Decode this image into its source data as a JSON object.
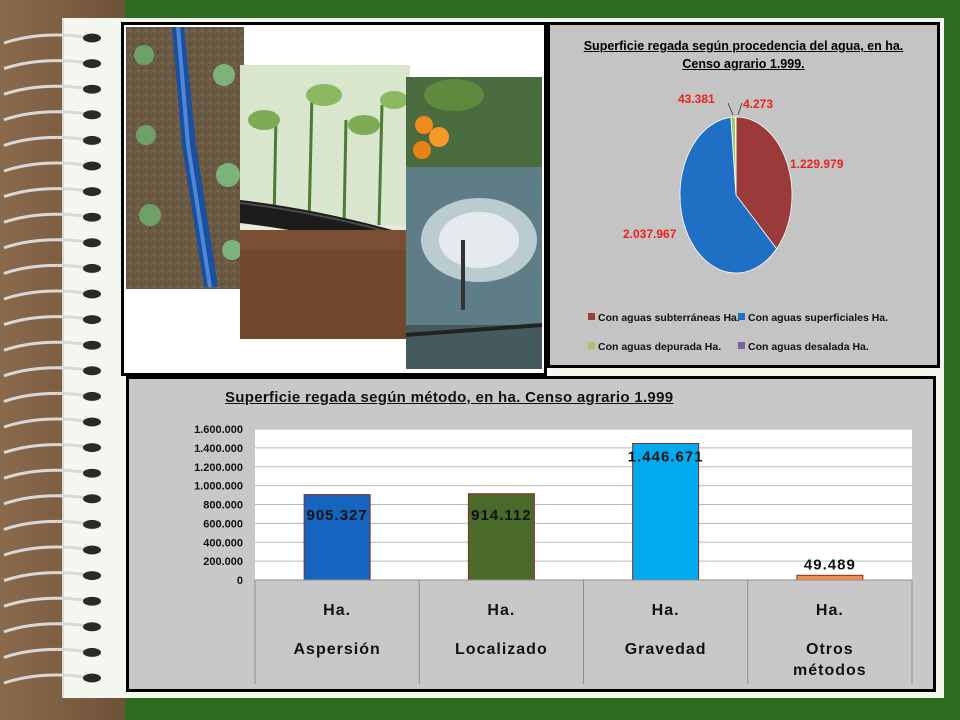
{
  "pie_chart": {
    "title_line1": "Superficie regada según procedencia del agua, en ha.",
    "title_line2": "Censo agrario 1.999.",
    "labels": [
      "1.229.979",
      "2.037.967",
      "43.381",
      "4.273"
    ],
    "legend": [
      "Con aguas subterráneas Ha.",
      "Con aguas superficiales Ha.",
      "Con aguas depurada Ha.",
      "Con aguas desalada Ha."
    ]
  },
  "bar_chart": {
    "title": "Superficie regada según método, en ha. Censo agrario 1.999",
    "yticks": [
      "1.600.000",
      "1.400.000",
      "1.200.000",
      "1.000.000",
      "800.000",
      "600.000",
      "400.000",
      "200.000",
      "0"
    ],
    "unit_label": "Ha.",
    "categories": [
      "Aspersión",
      "Localizado",
      "Gravedad",
      "Otros métodos"
    ],
    "value_labels": [
      "905.327",
      "914.112",
      "1.446.671",
      "49.489"
    ]
  },
  "chart_data": [
    {
      "type": "pie",
      "title": "Superficie regada según procedencia del agua, en ha. Censo agrario 1.999.",
      "categories": [
        "Con aguas subterráneas Ha.",
        "Con aguas superficiales Ha.",
        "Con aguas depurada Ha.",
        "Con aguas desalada Ha."
      ],
      "values": [
        1229979,
        2037967,
        43381,
        4273
      ],
      "colors": [
        "#9b3a3a",
        "#1f6fc5",
        "#a6c86a",
        "#7d5ea8"
      ],
      "legend_position": "bottom"
    },
    {
      "type": "bar",
      "title": "Superficie regada según método, en ha. Censo agrario 1.999",
      "categories": [
        "Aspersión",
        "Localizado",
        "Gravedad",
        "Otros métodos"
      ],
      "values": [
        905327,
        914112,
        1446671,
        49489
      ],
      "colors": [
        "#1565c0",
        "#4a6a2a",
        "#00aaee",
        "#f0904a"
      ],
      "ylim": [
        0,
        1600000
      ],
      "grid": true
    }
  ]
}
